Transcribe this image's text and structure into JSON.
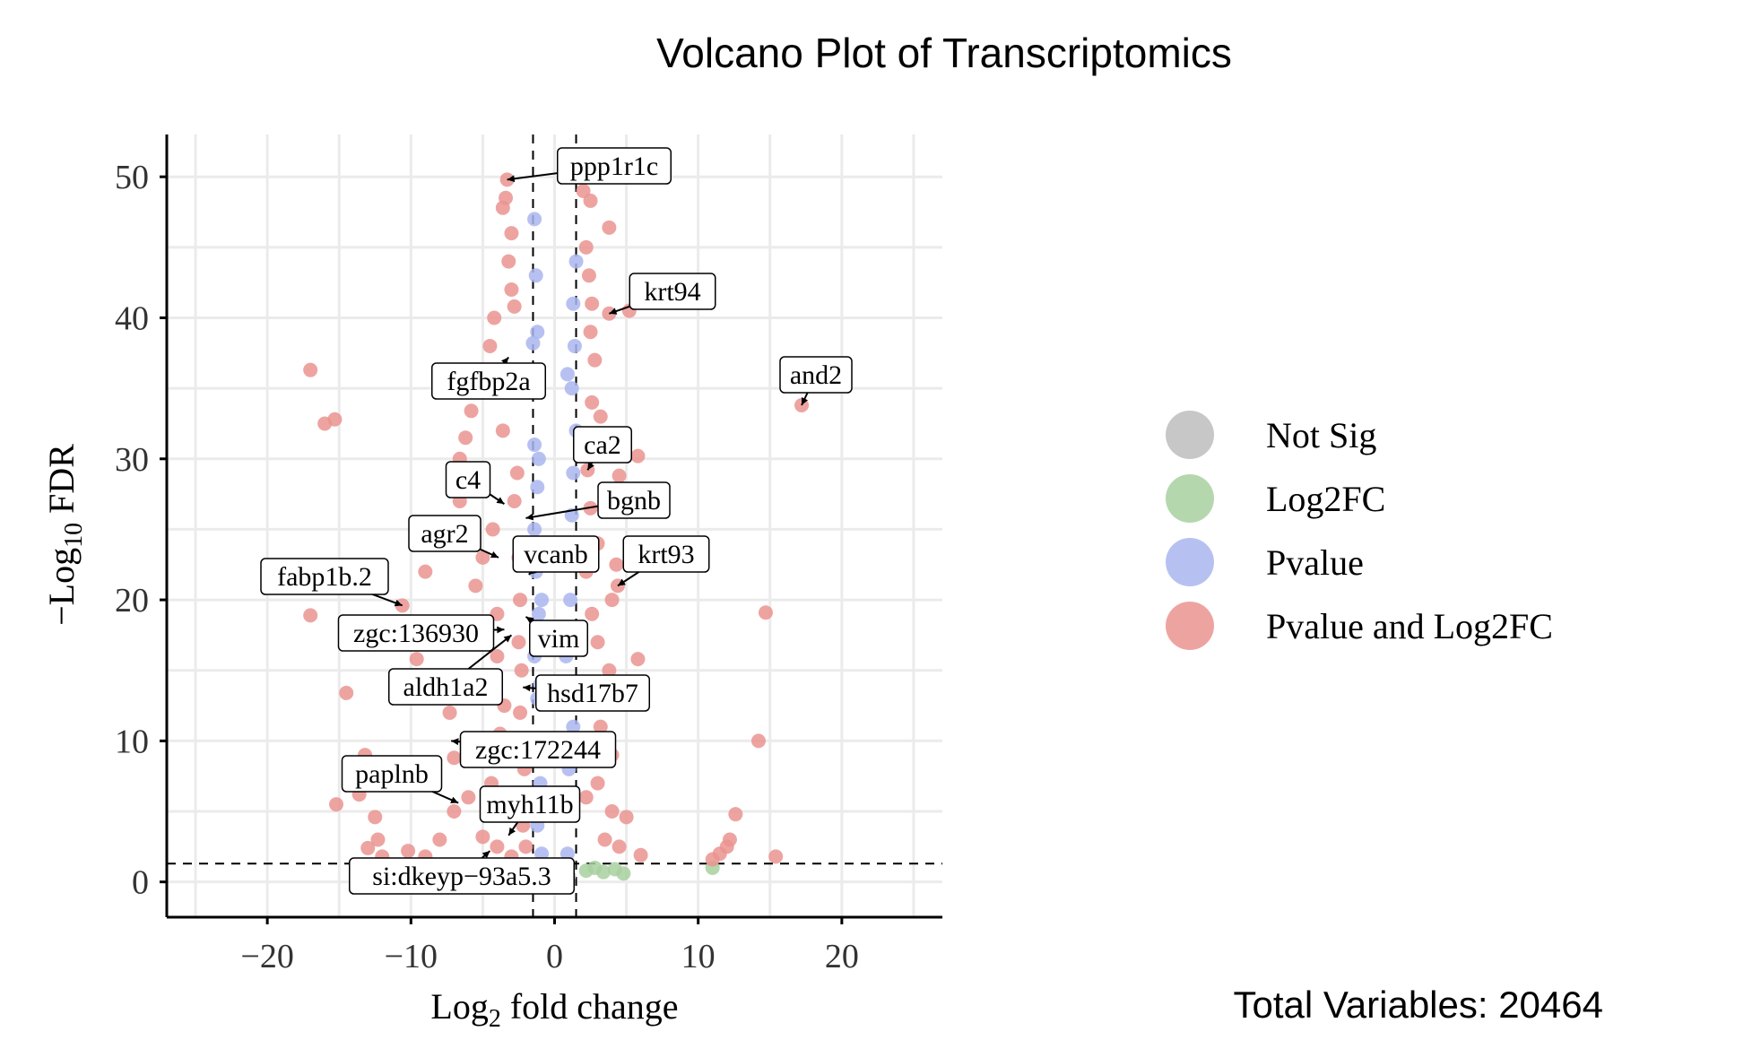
{
  "chart_data": {
    "type": "scatter",
    "title": "Volcano Plot of Transcriptomics",
    "xlabel": "Log2 fold change",
    "ylabel": "−Log10 FDR",
    "xlim": [
      -27,
      27
    ],
    "ylim": [
      -2.5,
      53
    ],
    "x_ticks": [
      -20,
      -10,
      0,
      10,
      20
    ],
    "x_tick_labels": [
      "−20",
      "−10",
      "0",
      "10",
      "20"
    ],
    "y_ticks": [
      0,
      10,
      20,
      30,
      40,
      50
    ],
    "y_tick_labels": [
      "0",
      "10",
      "20",
      "30",
      "40",
      "50"
    ],
    "grid": true,
    "thresholds": {
      "log2fc": [
        -1.5,
        1.5
      ],
      "neg_log10_fdr": 1.3
    },
    "legend": {
      "position": "right",
      "entries": [
        {
          "name": "Not Sig",
          "color": "#bdbdbd"
        },
        {
          "name": "Log2FC",
          "color": "#a8d0a0"
        },
        {
          "name": "Pvalue",
          "color": "#aab6ee"
        },
        {
          "name": "Pvalue and Log2FC",
          "color": "#ea9490"
        }
      ]
    },
    "caption": "Total Variables: 20464",
    "labeled_points": [
      {
        "label": "ppp1r1c",
        "x": -3.3,
        "y": 49.8
      },
      {
        "label": "krt94",
        "x": 3.8,
        "y": 40.3
      },
      {
        "label": "and2",
        "x": 17.2,
        "y": 33.8
      },
      {
        "label": "fgfbp2a",
        "x": -3.2,
        "y": 37.2
      },
      {
        "label": "ca2",
        "x": 2.3,
        "y": 29.2
      },
      {
        "label": "c4",
        "x": -3.5,
        "y": 26.8
      },
      {
        "label": "bgnb",
        "x": -2.0,
        "y": 25.8
      },
      {
        "label": "agr2",
        "x": -3.9,
        "y": 23.0
      },
      {
        "label": "vcanb",
        "x": -1.8,
        "y": 21.8
      },
      {
        "label": "krt93",
        "x": 4.4,
        "y": 21.0
      },
      {
        "label": "fabp1b.2",
        "x": -10.6,
        "y": 19.6
      },
      {
        "label": "zgc:136930",
        "x": -3.5,
        "y": 17.9
      },
      {
        "label": "vim",
        "x": -2.0,
        "y": 18.8
      },
      {
        "label": "aldh1a2",
        "x": -3.0,
        "y": 17.5
      },
      {
        "label": "hsd17b7",
        "x": -2.2,
        "y": 13.8
      },
      {
        "label": "zgc:172244",
        "x": -7.2,
        "y": 10.0
      },
      {
        "label": "paplnb",
        "x": -6.7,
        "y": 5.6
      },
      {
        "label": "myh11b",
        "x": -3.2,
        "y": 3.3
      },
      {
        "label": "si:dkeyp−93a5.3",
        "x": -4.5,
        "y": 2.2
      }
    ],
    "series": [
      {
        "name": "Pvalue and Log2FC",
        "color": "#ea9490",
        "points": [
          [
            -17,
            36.3
          ],
          [
            -16,
            32.5
          ],
          [
            -15.3,
            32.8
          ],
          [
            -17,
            18.9
          ],
          [
            -14.5,
            13.4
          ],
          [
            -15.2,
            5.5
          ],
          [
            -13.2,
            9.0
          ],
          [
            -13.6,
            6.2
          ],
          [
            -12.5,
            4.6
          ],
          [
            -12.3,
            3.0
          ],
          [
            -12.0,
            1.8
          ],
          [
            -11.6,
            1.2
          ],
          [
            -13.0,
            2.4
          ],
          [
            -10.6,
            19.6
          ],
          [
            -9.6,
            15.8
          ],
          [
            -9.0,
            22.0
          ],
          [
            -8.5,
            7.0
          ],
          [
            -8.0,
            3.0
          ],
          [
            -7.3,
            12.0
          ],
          [
            -7.0,
            5.0
          ],
          [
            -6.6,
            30.0
          ],
          [
            -6.2,
            31.5
          ],
          [
            -5.8,
            33.4
          ],
          [
            -5.5,
            28.0
          ],
          [
            -5.0,
            23.0
          ],
          [
            -5.3,
            17.0
          ],
          [
            -4.8,
            14.0
          ],
          [
            -4.6,
            9.5
          ],
          [
            -4.4,
            7.0
          ],
          [
            -4.2,
            40.0
          ],
          [
            -4.5,
            38.0
          ],
          [
            -4.3,
            25.0
          ],
          [
            -3.9,
            35.0
          ],
          [
            -3.6,
            32.0
          ],
          [
            -3.4,
            48.5
          ],
          [
            -3.6,
            47.8
          ],
          [
            -3.3,
            49.8
          ],
          [
            -3.0,
            46.0
          ],
          [
            -3.2,
            44.0
          ],
          [
            -3.0,
            42.0
          ],
          [
            -2.8,
            40.8
          ],
          [
            -2.7,
            36.0
          ],
          [
            -2.6,
            29.0
          ],
          [
            -2.8,
            27.0
          ],
          [
            -2.5,
            23.0
          ],
          [
            -2.4,
            20.0
          ],
          [
            -2.5,
            17.0
          ],
          [
            -2.3,
            15.0
          ],
          [
            -2.4,
            12.0
          ],
          [
            -2.2,
            10.0
          ],
          [
            -2.1,
            8.0
          ],
          [
            -2.0,
            6.0
          ],
          [
            -2.2,
            4.0
          ],
          [
            -2.0,
            2.5
          ],
          [
            -3.8,
            10.5
          ],
          [
            -3.5,
            12.5
          ],
          [
            -4.0,
            19.0
          ],
          [
            -4.0,
            16.0
          ],
          [
            -5.5,
            21.0
          ],
          [
            -6.0,
            25.0
          ],
          [
            -6.6,
            27.0
          ],
          [
            -3.0,
            1.8
          ],
          [
            -4.0,
            2.5
          ],
          [
            -5.0,
            3.2
          ],
          [
            -6.0,
            6.0
          ],
          [
            -7.0,
            8.8
          ],
          [
            -9.0,
            1.8
          ],
          [
            -10.2,
            2.2
          ],
          [
            2.0,
            49.0
          ],
          [
            2.5,
            48.3
          ],
          [
            3.8,
            46.4
          ],
          [
            2.2,
            45.0
          ],
          [
            2.4,
            43.0
          ],
          [
            2.6,
            41.0
          ],
          [
            2.5,
            39.0
          ],
          [
            3.8,
            40.3
          ],
          [
            5.2,
            40.5
          ],
          [
            2.8,
            37.0
          ],
          [
            2.6,
            34.0
          ],
          [
            2.4,
            31.0
          ],
          [
            3.2,
            33.0
          ],
          [
            5.8,
            30.2
          ],
          [
            4.5,
            28.8
          ],
          [
            2.3,
            29.2
          ],
          [
            2.5,
            26.5
          ],
          [
            3.0,
            24.0
          ],
          [
            4.4,
            21.0
          ],
          [
            4.3,
            22.5
          ],
          [
            4.0,
            20.0
          ],
          [
            2.6,
            19.0
          ],
          [
            3.0,
            17.0
          ],
          [
            3.8,
            15.0
          ],
          [
            5.8,
            15.8
          ],
          [
            2.6,
            13.0
          ],
          [
            3.2,
            11.0
          ],
          [
            4.0,
            9.0
          ],
          [
            3.0,
            7.0
          ],
          [
            4.0,
            5.0
          ],
          [
            5.0,
            4.6
          ],
          [
            3.5,
            3.0
          ],
          [
            4.5,
            2.5
          ],
          [
            6.0,
            1.9
          ],
          [
            2.2,
            6.0
          ],
          [
            2.2,
            22.0
          ],
          [
            11.0,
            1.6
          ],
          [
            11.5,
            2.0
          ],
          [
            12.0,
            2.5
          ],
          [
            12.2,
            3.0
          ],
          [
            12.6,
            4.8
          ],
          [
            14.2,
            10.0
          ],
          [
            14.7,
            19.1
          ],
          [
            15.4,
            1.8
          ],
          [
            17.2,
            33.8
          ]
        ]
      },
      {
        "name": "Pvalue",
        "color": "#aab6ee",
        "points": [
          [
            -1.4,
            47.0
          ],
          [
            -1.3,
            43.0
          ],
          [
            -1.2,
            39.0
          ],
          [
            -1.5,
            38.2
          ],
          [
            -1.3,
            35.0
          ],
          [
            -1.4,
            31.0
          ],
          [
            -1.2,
            28.0
          ],
          [
            -1.4,
            25.0
          ],
          [
            -1.3,
            22.0
          ],
          [
            -1.1,
            19.0
          ],
          [
            -1.4,
            16.0
          ],
          [
            -1.2,
            13.0
          ],
          [
            -1.3,
            10.0
          ],
          [
            -1.0,
            7.0
          ],
          [
            -1.2,
            4.0
          ],
          [
            -0.9,
            2.0
          ],
          [
            -1.0,
            14.0
          ],
          [
            -0.9,
            20.0
          ],
          [
            -1.1,
            30.0
          ],
          [
            -0.8,
            10.0
          ],
          [
            1.3,
            41.0
          ],
          [
            1.4,
            38.0
          ],
          [
            1.2,
            35.0
          ],
          [
            1.5,
            32.0
          ],
          [
            1.3,
            29.0
          ],
          [
            1.2,
            26.0
          ],
          [
            1.4,
            23.0
          ],
          [
            1.1,
            20.0
          ],
          [
            1.4,
            17.0
          ],
          [
            1.2,
            14.0
          ],
          [
            1.3,
            11.0
          ],
          [
            1.0,
            8.0
          ],
          [
            1.2,
            5.0
          ],
          [
            0.9,
            2.0
          ],
          [
            1.0,
            24.0
          ],
          [
            0.8,
            16.0
          ],
          [
            0.9,
            36.0
          ],
          [
            1.5,
            44.0
          ]
        ]
      },
      {
        "name": "Log2FC",
        "color": "#a8d0a0",
        "points": [
          [
            2.2,
            0.8
          ],
          [
            2.8,
            1.0
          ],
          [
            3.4,
            0.7
          ],
          [
            4.2,
            0.9
          ],
          [
            4.8,
            0.6
          ],
          [
            11.0,
            1.0
          ]
        ]
      },
      {
        "name": "Not Sig",
        "color": "#bdbdbd",
        "points": [
          [
            -0.6,
            0.4
          ],
          [
            0.0,
            0.3
          ],
          [
            0.5,
            0.5
          ],
          [
            -1.0,
            0.2
          ],
          [
            1.0,
            0.4
          ]
        ]
      }
    ]
  }
}
